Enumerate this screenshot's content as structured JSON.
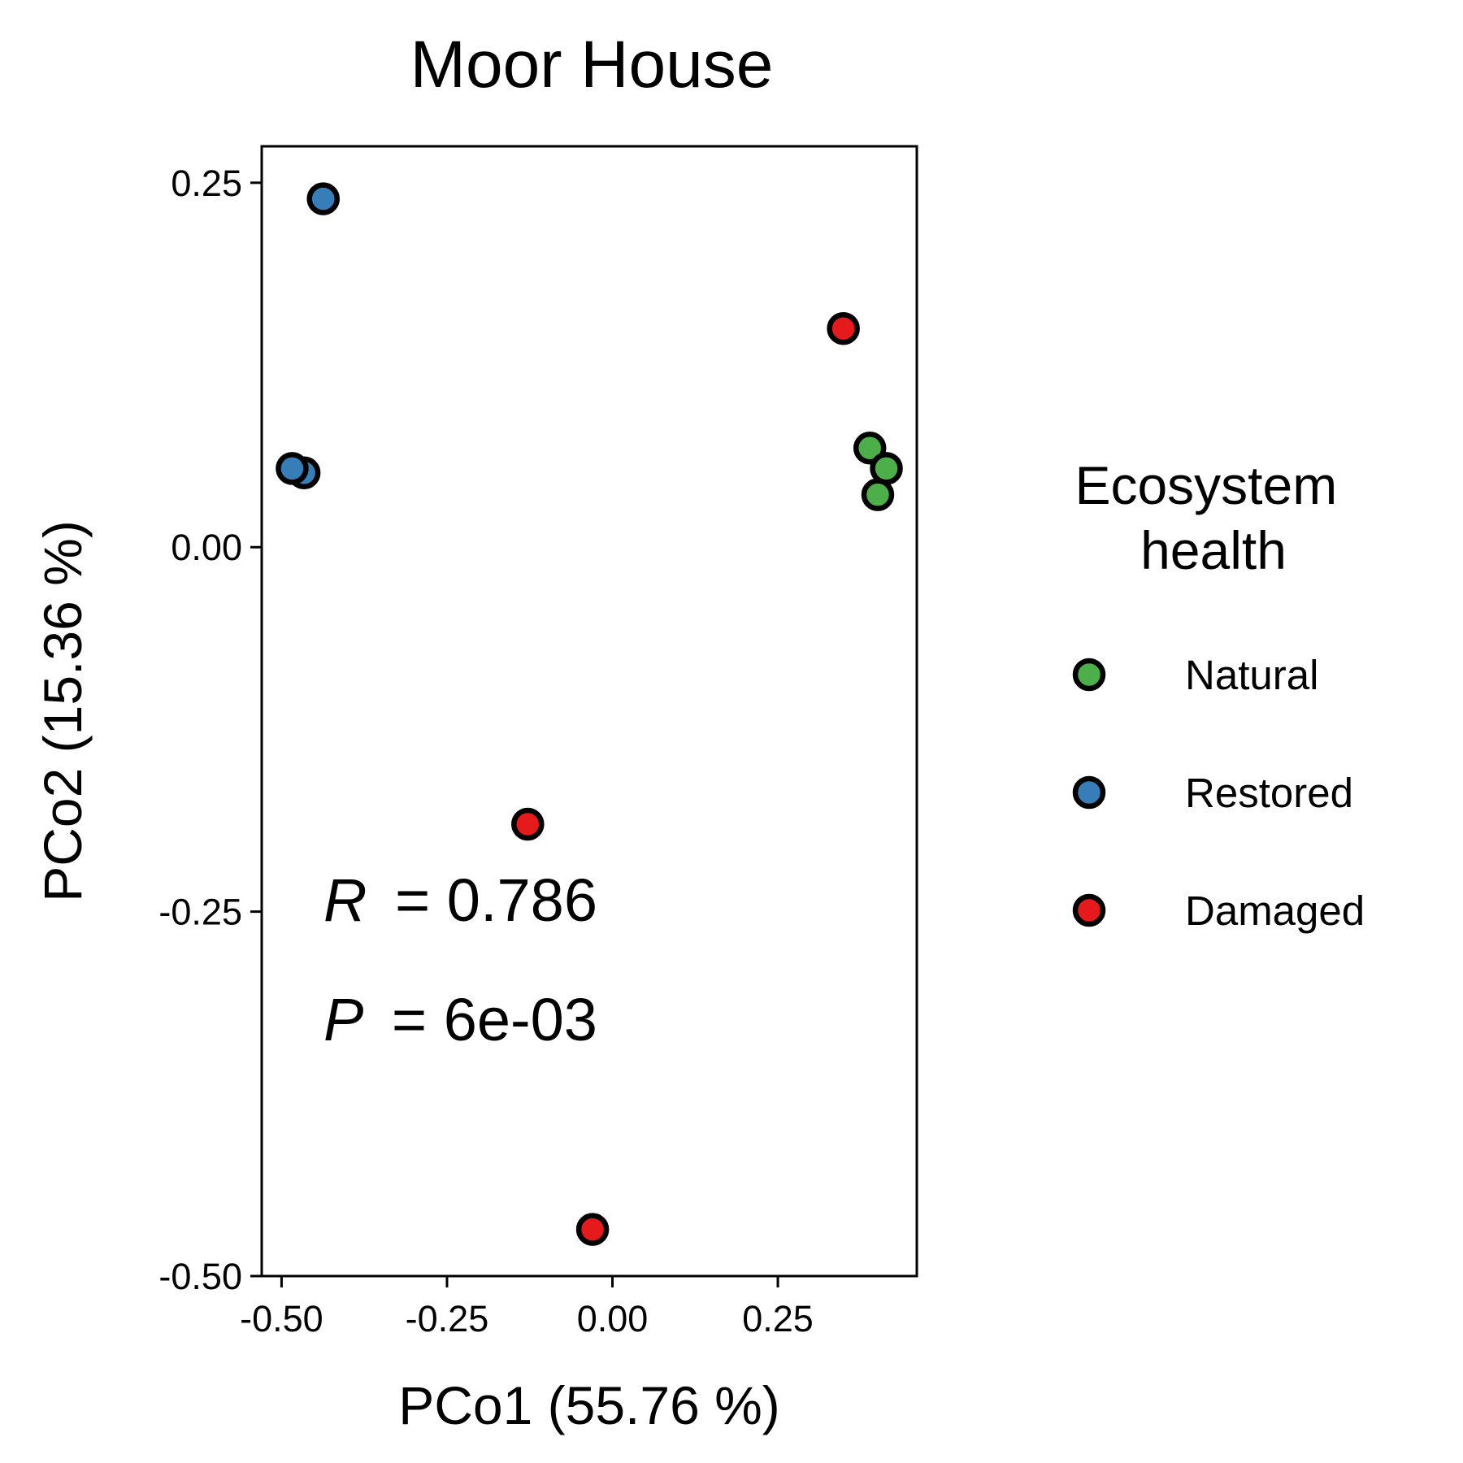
{
  "chart_data": {
    "type": "scatter",
    "title": "Moor House",
    "xlabel": "PCo1 (55.76 %)",
    "ylabel": "PCo2 (15.36 %)",
    "xlim": [
      -0.53,
      0.46
    ],
    "ylim": [
      -0.5,
      0.275
    ],
    "xticks": [
      -0.5,
      -0.25,
      0.0,
      0.25
    ],
    "xtick_labels": [
      "-0.50",
      "-0.25",
      "0.00",
      "0.25"
    ],
    "yticks": [
      -0.5,
      -0.25,
      0.0,
      0.25
    ],
    "ytick_labels": [
      "-0.50",
      "-0.25",
      "0.00",
      "0.25"
    ],
    "grid": false,
    "legend": {
      "title_lines": [
        "Ecosystem",
        "health"
      ],
      "placement": "right"
    },
    "series": [
      {
        "name": "Natural",
        "color": "#4daf4a",
        "points": [
          [
            0.389,
            0.068
          ],
          [
            0.414,
            0.054
          ],
          [
            0.401,
            0.036
          ]
        ]
      },
      {
        "name": "Restored",
        "color": "#377eb8",
        "points": [
          [
            -0.437,
            0.239
          ],
          [
            -0.466,
            0.051
          ],
          [
            -0.484,
            0.054
          ]
        ]
      },
      {
        "name": "Damaged",
        "color": "#e41a1c",
        "points": [
          [
            0.349,
            0.15
          ],
          [
            -0.128,
            -0.19
          ],
          [
            -0.03,
            -0.468
          ]
        ]
      }
    ],
    "annotations": {
      "r_symbol": "R",
      "r_value": "= 0.786",
      "p_symbol": "P",
      "p_value": "= 6e-03"
    }
  }
}
